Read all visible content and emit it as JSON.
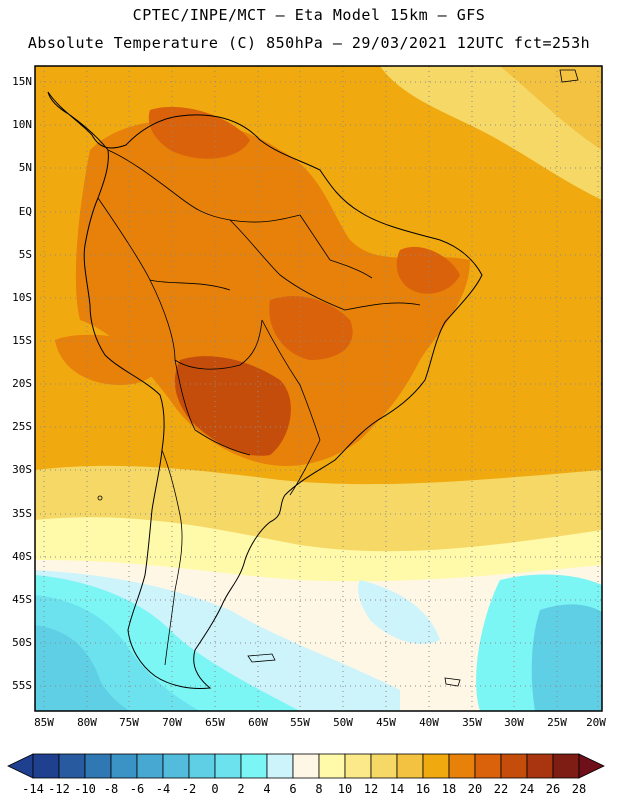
{
  "header": {
    "line1": "CPTEC/INPE/MCT —  Eta Model 15km — GFS",
    "line2": "Absolute Temperature (C) 850hPa — 29/03/2021 12UTC fct=253h"
  },
  "map": {
    "lat_labels": [
      "15N",
      "10N",
      "5N",
      "EQ",
      "5S",
      "10S",
      "15S",
      "20S",
      "25S",
      "30S",
      "35S",
      "40S",
      "45S",
      "50S",
      "55S"
    ],
    "lon_labels": [
      "85W",
      "80W",
      "75W",
      "70W",
      "65W",
      "60W",
      "55W",
      "50W",
      "45W",
      "40W",
      "35W",
      "30W",
      "25W",
      "20W"
    ]
  },
  "colorbar": {
    "labels": [
      "-14",
      "-12",
      "-10",
      "-8",
      "-6",
      "-4",
      "-2",
      "0",
      "2",
      "4",
      "6",
      "8",
      "10",
      "12",
      "14",
      "16",
      "18",
      "20",
      "22",
      "24",
      "26",
      "28"
    ],
    "colors": [
      "#1f3f8f",
      "#275a9f",
      "#2f78b3",
      "#3a92c5",
      "#47a8d2",
      "#53bcdd",
      "#5fcfe6",
      "#6ce2ee",
      "#7cf5f5",
      "#cdf3fb",
      "#fff7e6",
      "#fffaa9",
      "#fbe98a",
      "#f6d866",
      "#f3c240",
      "#f0aa10",
      "#e7810a",
      "#d9620a",
      "#c44d0c",
      "#a83510",
      "#7d1d14",
      "#6e0f1a"
    ]
  }
}
